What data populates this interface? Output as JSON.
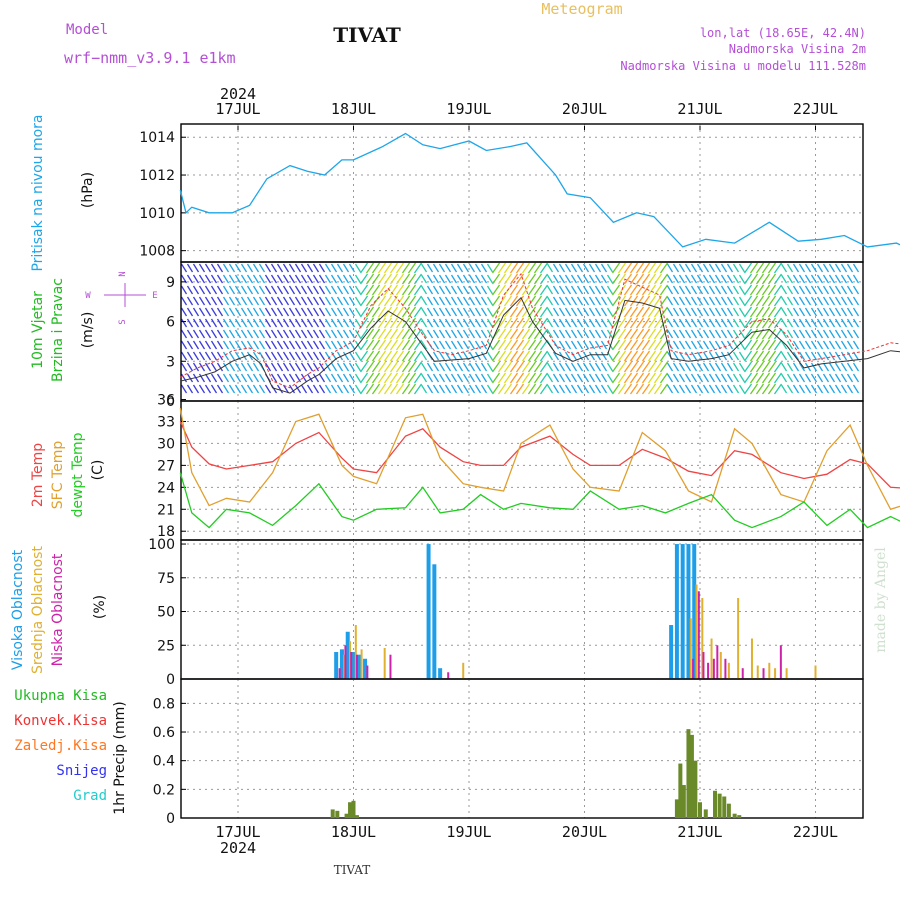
{
  "header": {
    "model_label": "Model",
    "model_name": "wrf−nmm_v3.9.1  e1km",
    "station_title": "TIVAT",
    "product": "Meteogram",
    "coords": "lon,lat (18.65E, 42.4N)",
    "elevation": "Nadmorska Visina 2m",
    "model_elevation": "Nadmorska Visina u modelu 111.528m"
  },
  "footer": {
    "station": "TIVAT",
    "watermark": "made by Angel"
  },
  "colors": {
    "pressure": "#1ea6e8",
    "temp2m": "#ee4444",
    "sfc_temp": "#e0a030",
    "dewpoint": "#22cc22",
    "wind_trace": "#333333",
    "gust": "#ee3333",
    "cloud_high": "#1e9ee8",
    "cloud_mid": "#e0b030",
    "cloud_low": "#cc22aa",
    "precip_total": "#22bb22",
    "precip_conv": "#ee3333",
    "precip_frozen": "#ff7722",
    "snow": "#3333ee",
    "graupel": "#22cccc",
    "precip_bar": "#6a8a2a"
  },
  "chart_data": [
    {
      "type": "line",
      "panel": "pressure",
      "ylabel": "Pritisak na nivou mora",
      "unit": "(hPa)",
      "ylim": [
        1007.4,
        1014.7
      ],
      "yticks": [
        1008,
        1010,
        1012,
        1014
      ],
      "top_axis": {
        "year": "2024",
        "ticks": [
          "17JUL",
          "18JUL",
          "19JUL",
          "20JUL",
          "21JUL",
          "22JUL"
        ]
      },
      "x": [
        -0.5,
        -0.45,
        -0.4,
        -0.25,
        -0.05,
        0.1,
        0.25,
        0.45,
        0.6,
        0.75,
        0.9,
        1.0,
        1.25,
        1.45,
        1.6,
        1.75,
        2.0,
        2.15,
        2.35,
        2.5,
        2.75,
        2.85,
        3.05,
        3.25,
        3.45,
        3.6,
        3.85,
        4.05,
        4.3,
        4.6,
        4.85,
        5.05,
        5.25,
        5.45,
        5.7,
        5.85,
        6.0
      ],
      "series": [
        {
          "values": [
            1011.2,
            1010.0,
            1010.3,
            1010.0,
            1010.0,
            1010.4,
            1011.8,
            1012.5,
            1012.2,
            1012.0,
            1012.8,
            1012.8,
            1013.5,
            1014.2,
            1013.6,
            1013.4,
            1013.8,
            1013.3,
            1013.5,
            1013.7,
            1012.0,
            1011.0,
            1010.8,
            1009.5,
            1010.0,
            1009.8,
            1008.2,
            1008.6,
            1008.4,
            1009.5,
            1008.5,
            1008.6,
            1008.8,
            1008.2,
            1008.4,
            1008.0,
            1007.6
          ]
        }
      ]
    },
    {
      "type": "line",
      "panel": "wind",
      "ylabel": [
        "10m Vjetar",
        "Brzina i Pravac"
      ],
      "unit": "(m/s)",
      "ylim": [
        0,
        10.5
      ],
      "yticks": [
        0,
        3,
        6,
        9
      ],
      "compass": [
        "N",
        "W",
        "E",
        "S"
      ],
      "x": [
        -0.5,
        -0.35,
        -0.2,
        -0.05,
        0.1,
        0.2,
        0.3,
        0.45,
        0.6,
        0.7,
        0.85,
        1.0,
        1.15,
        1.3,
        1.45,
        1.6,
        1.7,
        1.85,
        2.0,
        2.15,
        2.3,
        2.45,
        2.55,
        2.75,
        2.9,
        3.05,
        3.2,
        3.35,
        3.5,
        3.65,
        3.75,
        3.9,
        4.1,
        4.25,
        4.45,
        4.6,
        4.75,
        4.9,
        5.05,
        5.25,
        5.45,
        5.65,
        5.85,
        6.0
      ],
      "series": [
        {
          "name": "speed",
          "values": [
            1.5,
            1.8,
            2.2,
            3.0,
            3.5,
            2.8,
            1.0,
            0.6,
            1.5,
            2.0,
            3.2,
            3.8,
            5.5,
            6.8,
            6.0,
            4.2,
            3.0,
            3.1,
            3.2,
            3.6,
            6.5,
            7.8,
            6.0,
            3.6,
            3.0,
            3.5,
            3.5,
            7.6,
            7.4,
            7.0,
            3.2,
            3.0,
            3.2,
            3.5,
            5.2,
            5.4,
            4.2,
            2.5,
            2.8,
            3.0,
            3.2,
            3.8,
            3.6,
            1.5
          ]
        },
        {
          "name": "gust",
          "values": [
            1.8,
            2.5,
            3.0,
            3.8,
            4.0,
            3.5,
            1.5,
            1.0,
            2.0,
            2.5,
            3.8,
            4.5,
            7.2,
            8.5,
            7.0,
            5.0,
            3.8,
            3.5,
            3.8,
            4.2,
            8.0,
            9.6,
            7.0,
            4.2,
            3.5,
            4.0,
            4.2,
            9.2,
            8.6,
            8.0,
            3.8,
            3.5,
            3.8,
            4.2,
            6.0,
            6.2,
            5.0,
            3.0,
            3.2,
            3.5,
            3.8,
            4.4,
            4.2,
            2.0
          ]
        }
      ]
    },
    {
      "type": "line",
      "panel": "temperature",
      "ylabel": [
        "2m Temp",
        "SFC Temp",
        "dewpt Temp"
      ],
      "unit": "(C)",
      "ylim": [
        16.8,
        35.8
      ],
      "yticks": [
        18,
        21,
        24,
        27,
        30,
        33,
        36
      ],
      "x": [
        -0.5,
        -0.4,
        -0.25,
        -0.1,
        0.1,
        0.3,
        0.5,
        0.7,
        0.9,
        1.0,
        1.2,
        1.45,
        1.6,
        1.75,
        1.95,
        2.1,
        2.3,
        2.45,
        2.7,
        2.9,
        3.05,
        3.3,
        3.5,
        3.7,
        3.9,
        4.1,
        4.3,
        4.45,
        4.7,
        4.9,
        5.1,
        5.3,
        5.45,
        5.65,
        5.85,
        6.0
      ],
      "series": [
        {
          "name": "2m Temp",
          "values": [
            33.0,
            29.5,
            27.2,
            26.5,
            27.0,
            27.5,
            30.0,
            31.5,
            28.0,
            26.5,
            26.0,
            31.0,
            32.0,
            29.5,
            27.5,
            27.0,
            27.0,
            29.5,
            31.0,
            28.5,
            27.0,
            27.0,
            29.2,
            28.0,
            26.2,
            25.6,
            29.0,
            28.5,
            26.0,
            25.2,
            25.8,
            27.8,
            27.2,
            24.0,
            23.8,
            28.4
          ]
        },
        {
          "name": "SFC Temp",
          "values": [
            34.8,
            26.0,
            21.5,
            22.5,
            22.0,
            26.0,
            33.0,
            34.0,
            27.0,
            25.5,
            24.5,
            33.5,
            34.0,
            28.0,
            24.5,
            24.0,
            23.5,
            30.0,
            32.5,
            26.5,
            24.0,
            23.5,
            31.5,
            29.0,
            23.5,
            22.0,
            32.0,
            30.0,
            23.0,
            22.0,
            29.0,
            32.5,
            27.0,
            21.0,
            22.0,
            33.5
          ]
        },
        {
          "name": "dewpt Temp",
          "values": [
            26.0,
            20.5,
            18.5,
            21.0,
            20.5,
            18.8,
            21.5,
            24.5,
            20.0,
            19.5,
            21.0,
            21.2,
            24.0,
            20.5,
            21.0,
            23.0,
            21.0,
            21.8,
            21.2,
            21.0,
            23.5,
            21.0,
            21.5,
            20.5,
            21.8,
            23.0,
            19.5,
            18.5,
            20.0,
            22.0,
            18.8,
            21.0,
            18.5,
            20.0,
            18.5,
            23.8
          ]
        }
      ]
    },
    {
      "type": "bar",
      "panel": "clouds",
      "ylabel": [
        "Visoka Oblacnost",
        "Srednja Oblacnost",
        "Niska Oblacnost"
      ],
      "unit": "(%)",
      "ylim": [
        0,
        103
      ],
      "yticks": [
        0,
        25,
        50,
        75,
        100
      ],
      "series": [
        {
          "name": "Visoka Oblacnost",
          "x": [
            0.85,
            0.9,
            0.95,
            1.0,
            1.05,
            1.1,
            1.65,
            1.7,
            1.75,
            3.75,
            3.8,
            3.85,
            3.9,
            3.95
          ],
          "values": [
            20,
            22,
            35,
            20,
            18,
            15,
            100,
            85,
            8,
            40,
            100,
            100,
            100,
            100
          ]
        },
        {
          "name": "Srednja Oblacnost",
          "x": [
            0.92,
            0.97,
            1.02,
            1.07,
            1.27,
            1.95,
            3.92,
            3.97,
            4.02,
            4.1,
            4.18,
            4.25,
            4.33,
            4.45,
            4.5,
            4.6,
            4.65,
            4.75,
            5.0
          ],
          "values": [
            18,
            28,
            40,
            22,
            23,
            12,
            45,
            70,
            60,
            30,
            20,
            12,
            60,
            30,
            10,
            12,
            8,
            8,
            10
          ]
        },
        {
          "name": "Niska Oblacnost",
          "x": [
            0.88,
            0.93,
            0.98,
            1.03,
            1.12,
            1.32,
            1.82,
            3.94,
            3.99,
            4.03,
            4.07,
            4.12,
            4.15,
            4.22,
            4.37,
            4.55,
            4.7
          ],
          "values": [
            8,
            25,
            20,
            18,
            10,
            18,
            5,
            15,
            65,
            20,
            12,
            15,
            25,
            15,
            8,
            8,
            25
          ]
        }
      ]
    },
    {
      "type": "bar",
      "panel": "precipitation",
      "ylabel": "1hr Precip",
      "unit": "(mm)",
      "ylim": [
        0,
        0.97
      ],
      "yticks": [
        0,
        0.2,
        0.4,
        0.6,
        0.8
      ],
      "legend": [
        "Ukupna Kisa",
        "Konvek.Kisa",
        "Zaledj.Kisa",
        "Snijeg",
        "Grad"
      ],
      "bottom_axis": {
        "year": "2024",
        "ticks": [
          "17JUL",
          "18JUL",
          "19JUL",
          "20JUL",
          "21JUL",
          "22JUL"
        ]
      },
      "series": [
        {
          "name": "Ukupna Kisa",
          "x": [
            0.82,
            0.86,
            0.94,
            0.97,
            1.0,
            1.03,
            3.8,
            3.83,
            3.86,
            3.9,
            3.93,
            3.96,
            4.0,
            4.05,
            4.13,
            4.17,
            4.21,
            4.25,
            4.3,
            4.34
          ],
          "values": [
            0.06,
            0.05,
            0.03,
            0.11,
            0.12,
            0.02,
            0.13,
            0.38,
            0.23,
            0.62,
            0.58,
            0.4,
            0.11,
            0.06,
            0.19,
            0.17,
            0.15,
            0.1,
            0.03,
            0.02
          ]
        }
      ]
    }
  ]
}
